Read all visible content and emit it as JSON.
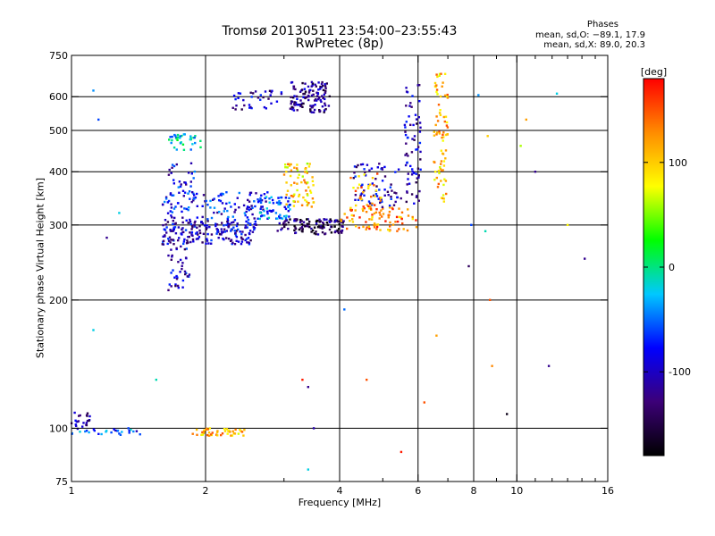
{
  "header": {
    "title_line1": "Tromsø 20130511 23:54:00–23:55:43",
    "title_line2": "RwPretec (8p)",
    "legend_heading": "Phases",
    "stat_o": "mean, sd,O: −89.1, 17.9",
    "stat_x": "mean, sd,X: 89.0, 20.3"
  },
  "colors": {
    "grid": "#000000",
    "colorbar_stops": [
      "#000000",
      "#3c0078",
      "#0000ff",
      "#00c8ff",
      "#00ff00",
      "#ffff00",
      "#ff8c00",
      "#ff0000"
    ]
  },
  "chart_data": {
    "type": "scatter",
    "xlabel": "Frequency [MHz]",
    "ylabel": "Stationary phase Virtual Height [km]",
    "x_scale": "log",
    "y_scale": "log",
    "xlim": [
      1,
      16
    ],
    "ylim": [
      75,
      750
    ],
    "x_ticks": [
      1,
      2,
      4,
      6,
      8,
      10,
      16
    ],
    "x_minor_ticks": [
      3,
      5,
      7,
      9,
      11,
      12,
      13,
      14,
      15
    ],
    "y_ticks": [
      75,
      100,
      200,
      300,
      400,
      500,
      600,
      750
    ],
    "grid": true,
    "colorbar": {
      "label": "[deg]",
      "range": [
        -180,
        180
      ],
      "ticks": [
        100,
        0,
        -100
      ]
    },
    "clusters": [
      {
        "x": [
          1.0,
          1.1
        ],
        "y": [
          100,
          110
        ],
        "phase": -110,
        "n": 22
      },
      {
        "x": [
          1.0,
          1.45
        ],
        "y": [
          96,
          100
        ],
        "phase": -60,
        "n": 28
      },
      {
        "x": [
          1.85,
          2.45
        ],
        "y": [
          96,
          100
        ],
        "phase": 110,
        "n": 45
      },
      {
        "x": [
          1.6,
          2.6
        ],
        "y": [
          270,
          310
        ],
        "phase": -100,
        "n": 200
      },
      {
        "x": [
          1.6,
          2.8
        ],
        "y": [
          310,
          360
        ],
        "phase": -80,
        "n": 120
      },
      {
        "x": [
          1.65,
          1.9
        ],
        "y": [
          350,
          420
        ],
        "phase": -85,
        "n": 30
      },
      {
        "x": [
          1.65,
          1.95
        ],
        "y": [
          450,
          490
        ],
        "phase": -20,
        "n": 35
      },
      {
        "x": [
          1.65,
          1.85
        ],
        "y": [
          210,
          270
        ],
        "phase": -100,
        "n": 40
      },
      {
        "x": [
          2.6,
          3.1
        ],
        "y": [
          310,
          350
        ],
        "phase": -50,
        "n": 60
      },
      {
        "x": [
          3.1,
          3.8
        ],
        "y": [
          550,
          650
        ],
        "phase": -120,
        "n": 120
      },
      {
        "x": [
          2.3,
          3.0
        ],
        "y": [
          560,
          620
        ],
        "phase": -110,
        "n": 35
      },
      {
        "x": [
          3.0,
          3.5
        ],
        "y": [
          330,
          420
        ],
        "phase": 100,
        "n": 70
      },
      {
        "x": [
          2.9,
          4.1
        ],
        "y": [
          285,
          310
        ],
        "phase": -140,
        "n": 120
      },
      {
        "x": [
          4.0,
          6.0
        ],
        "y": [
          290,
          330
        ],
        "phase": 130,
        "n": 80
      },
      {
        "x": [
          4.3,
          5.5
        ],
        "y": [
          330,
          420
        ],
        "phase": -100,
        "n": 70
      },
      {
        "x": [
          5.6,
          6.1
        ],
        "y": [
          330,
          640
        ],
        "phase": -110,
        "n": 70
      },
      {
        "x": [
          6.5,
          7.0
        ],
        "y": [
          340,
          680
        ],
        "phase": 110,
        "n": 80
      },
      {
        "x": [
          4.2,
          5.0
        ],
        "y": [
          320,
          400
        ],
        "phase": 120,
        "n": 40
      }
    ],
    "outliers": [
      {
        "x": 1.12,
        "y": 620,
        "phase": -40
      },
      {
        "x": 1.15,
        "y": 530,
        "phase": -60
      },
      {
        "x": 1.28,
        "y": 320,
        "phase": -20
      },
      {
        "x": 1.2,
        "y": 280,
        "phase": -120
      },
      {
        "x": 1.12,
        "y": 170,
        "phase": -20
      },
      {
        "x": 1.55,
        "y": 130,
        "phase": -10
      },
      {
        "x": 3.3,
        "y": 130,
        "phase": 170
      },
      {
        "x": 3.4,
        "y": 125,
        "phase": -120
      },
      {
        "x": 3.5,
        "y": 100,
        "phase": -110
      },
      {
        "x": 3.4,
        "y": 80,
        "phase": -20
      },
      {
        "x": 4.1,
        "y": 190,
        "phase": -50
      },
      {
        "x": 4.6,
        "y": 130,
        "phase": 150
      },
      {
        "x": 5.5,
        "y": 88,
        "phase": 170
      },
      {
        "x": 6.2,
        "y": 115,
        "phase": 150
      },
      {
        "x": 6.6,
        "y": 165,
        "phase": 120
      },
      {
        "x": 7.8,
        "y": 240,
        "phase": -140
      },
      {
        "x": 7.9,
        "y": 300,
        "phase": -60
      },
      {
        "x": 8.5,
        "y": 290,
        "phase": -10
      },
      {
        "x": 8.7,
        "y": 200,
        "phase": 150
      },
      {
        "x": 8.8,
        "y": 140,
        "phase": 130
      },
      {
        "x": 9.5,
        "y": 108,
        "phase": -170
      },
      {
        "x": 10.2,
        "y": 460,
        "phase": 60
      },
      {
        "x": 11.0,
        "y": 400,
        "phase": -120
      },
      {
        "x": 11.8,
        "y": 140,
        "phase": -120
      },
      {
        "x": 12.3,
        "y": 610,
        "phase": -20
      },
      {
        "x": 13.0,
        "y": 300,
        "phase": 80
      },
      {
        "x": 14.2,
        "y": 250,
        "phase": -120
      },
      {
        "x": 8.2,
        "y": 605,
        "phase": -40
      },
      {
        "x": 8.6,
        "y": 485,
        "phase": 100
      },
      {
        "x": 10.5,
        "y": 530,
        "phase": 120
      }
    ]
  }
}
